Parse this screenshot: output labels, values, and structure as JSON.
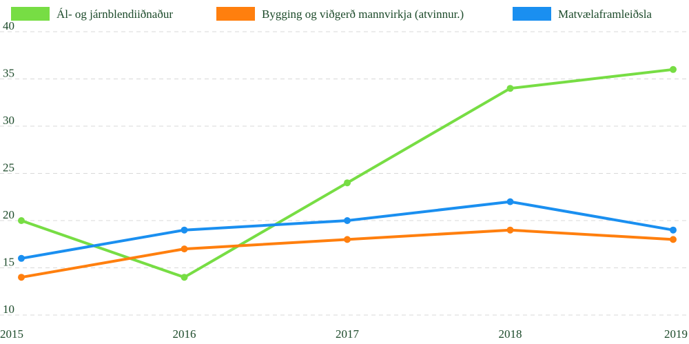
{
  "chart_data": {
    "type": "line",
    "title": "",
    "xlabel": "",
    "ylabel": "",
    "x": [
      "2015",
      "2016",
      "2017",
      "2018",
      "2019"
    ],
    "ylim": [
      10,
      40
    ],
    "yticks": [
      10,
      15,
      20,
      25,
      30,
      35,
      40
    ],
    "grid": true,
    "legend_position": "top",
    "series": [
      {
        "name": "Ál- og járnblendiiðnaður",
        "color": "#77dd44",
        "values": [
          20,
          14,
          24,
          34,
          36
        ]
      },
      {
        "name": "Bygging og viðgerð mannvirkja (atvinnur.)",
        "color": "#ff7f0e",
        "values": [
          14,
          17,
          18,
          19,
          18
        ]
      },
      {
        "name": "Matvælaframleiðsla",
        "color": "#1a8ff0",
        "values": [
          16,
          19,
          20,
          22,
          19
        ]
      }
    ]
  }
}
